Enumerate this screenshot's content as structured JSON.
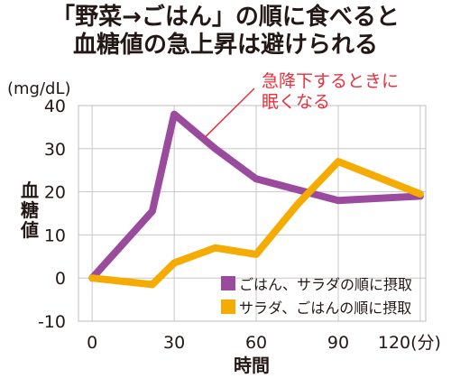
{
  "chart_data": {
    "type": "line",
    "title": [
      "「野菜→ごはん」の順に食べると",
      "血糖値の急上昇は避けられる"
    ],
    "ylabel": "血糖値",
    "yunit": "(mg/dL)",
    "xlabel": "時間",
    "x": [
      0,
      22,
      30,
      45,
      60,
      75,
      90,
      120
    ],
    "xticks": [
      0,
      30,
      60,
      90,
      120
    ],
    "xtick_labels": [
      "0",
      "30",
      "60",
      "90",
      "120(分)"
    ],
    "yticks": [
      -10,
      0,
      10,
      20,
      30,
      40
    ],
    "xlim": [
      -5,
      122
    ],
    "ylim": [
      -10,
      40
    ],
    "grid": true,
    "legend_position": "bottom-right",
    "series": [
      {
        "name": "ごはん、サラダの順に摂取",
        "color": "#9B4B9E",
        "points": [
          [
            0,
            0
          ],
          [
            22,
            15.5
          ],
          [
            30,
            38
          ],
          [
            45,
            30
          ],
          [
            60,
            23
          ],
          [
            75,
            20.5
          ],
          [
            90,
            18
          ],
          [
            120,
            19
          ]
        ]
      },
      {
        "name": "サラダ、ごはんの順に摂取",
        "color": "#F5AB00",
        "points": [
          [
            0,
            0
          ],
          [
            22,
            -1.5
          ],
          [
            30,
            3.5
          ],
          [
            45,
            7
          ],
          [
            60,
            5.5
          ],
          [
            75,
            17
          ],
          [
            90,
            27
          ],
          [
            120,
            19.5
          ]
        ]
      }
    ],
    "annotation": {
      "lines": [
        "急降下するときに",
        "眠くなる"
      ],
      "color": "#E8303D",
      "points_to": [
        45,
        30
      ]
    }
  }
}
